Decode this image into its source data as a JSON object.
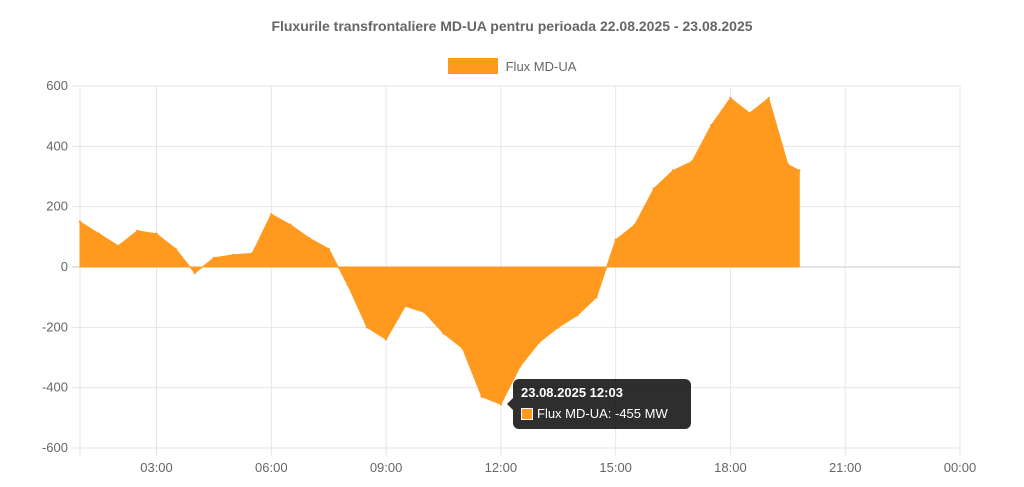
{
  "chart_data": {
    "type": "area",
    "title": "Fluxurile transfrontaliere MD-UA pentru perioada 22.08.2025 - 23.08.2025",
    "xlabel": "",
    "ylabel": "",
    "ylim": [
      -600,
      600
    ],
    "y_ticks": [
      "600",
      "400",
      "200",
      "0",
      "-200",
      "-400",
      "-600"
    ],
    "x_ticks": [
      "03:00",
      "06:00",
      "09:00",
      "12:00",
      "15:00",
      "18:00",
      "21:00",
      "00:00"
    ],
    "x_range_hours": [
      1,
      24
    ],
    "grid": true,
    "legend_position": "top",
    "series": [
      {
        "name": "Flux MD-UA",
        "color": "#ff9a1f",
        "x_hours": [
          1.0,
          1.5,
          2.0,
          2.5,
          3.0,
          3.5,
          4.0,
          4.5,
          5.0,
          5.5,
          6.0,
          6.5,
          7.0,
          7.5,
          8.0,
          8.5,
          9.0,
          9.5,
          10.0,
          10.5,
          11.0,
          11.5,
          12.0,
          12.5,
          13.0,
          13.5,
          14.0,
          14.5,
          15.0,
          15.5,
          16.0,
          16.5,
          17.0,
          17.5,
          18.0,
          18.5,
          19.0,
          19.5,
          19.8
        ],
        "values": [
          150,
          110,
          70,
          120,
          110,
          60,
          -20,
          30,
          40,
          45,
          175,
          140,
          95,
          60,
          -60,
          -200,
          -240,
          -130,
          -150,
          -220,
          -270,
          -430,
          -455,
          -330,
          -250,
          -200,
          -160,
          -100,
          90,
          140,
          260,
          320,
          350,
          470,
          560,
          510,
          560,
          340,
          320
        ]
      }
    ],
    "tooltip": {
      "title": "23.08.2025 12:03",
      "label": "Flux MD-UA: -455 MW"
    }
  }
}
